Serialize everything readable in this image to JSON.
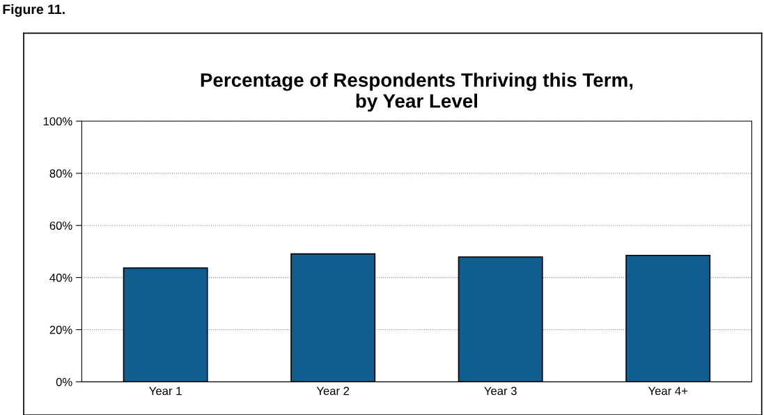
{
  "chart_data": {
    "type": "bar",
    "title": "Percentage of Respondents Thriving this Term,\nby Year Level",
    "annotations": [
      "Figure 11."
    ],
    "categories": [
      "Year 1",
      "Year 2",
      "Year 3",
      "Year 4+"
    ],
    "values": [
      43.7,
      49.1,
      47.9,
      48.5
    ],
    "color": "#0f5e8f",
    "ylim": [
      0,
      100
    ],
    "yticks": [
      {
        "value": 0,
        "label": "0%"
      },
      {
        "value": 20,
        "label": "20%"
      },
      {
        "value": 40,
        "label": "40%"
      },
      {
        "value": 60,
        "label": "60%"
      },
      {
        "value": 80,
        "label": "80%"
      },
      {
        "value": 100,
        "label": "100%"
      }
    ],
    "grid": "y"
  }
}
